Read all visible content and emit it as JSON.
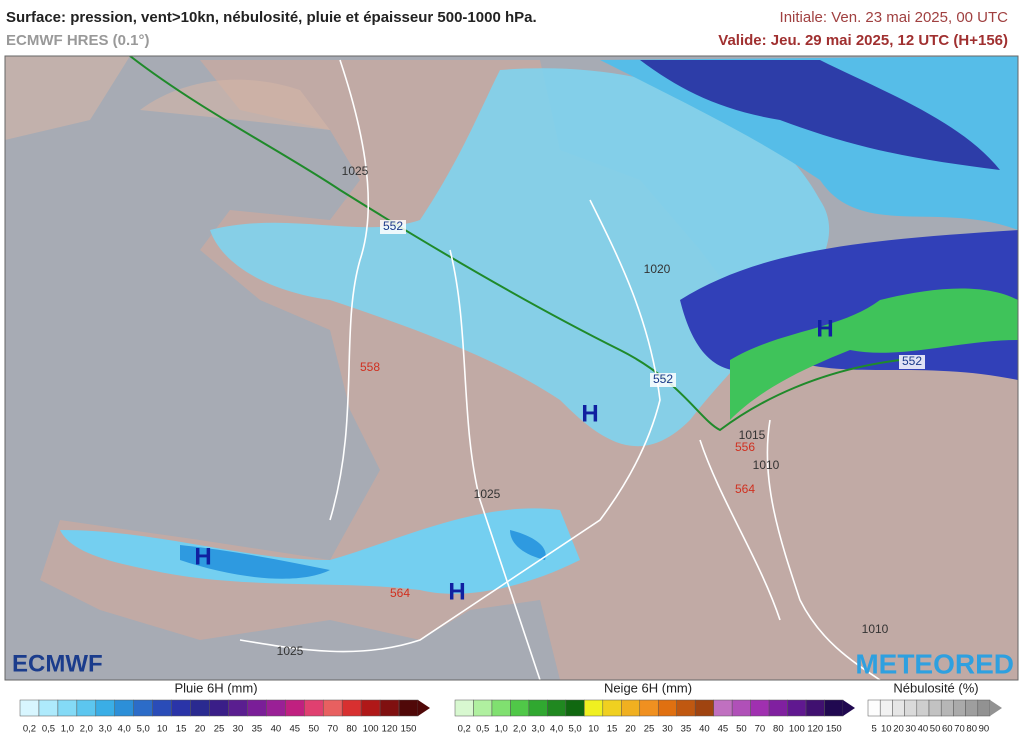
{
  "header": {
    "title": "Surface: pression, vent>10kn, nébulosité, pluie et épaisseur 500-1000 hPa.",
    "model": "ECMWF HRES (0.1°)",
    "initial": "Initiale: Ven. 23 mai 2025, 00 UTC",
    "valid": "Valide: Jeu. 29 mai 2025, 12 UTC (H+156)"
  },
  "map": {
    "labels": [
      "1025",
      "552",
      "1020",
      "558",
      "552",
      "H",
      "1025",
      "H",
      "564",
      "H",
      "1025",
      "1010",
      "1015",
      "556",
      "564",
      "H",
      "552",
      "1010"
    ]
  },
  "logos": {
    "left": "ECMWF",
    "right": "METEORED"
  },
  "legends": {
    "rain": {
      "title": "Pluie 6H (mm)",
      "labels": [
        "0,2",
        "0,5",
        "1,0",
        "2,0",
        "3,0",
        "4,0",
        "5,0",
        "10",
        "15",
        "20",
        "25",
        "30",
        "35",
        "40",
        "45",
        "50",
        "70",
        "80",
        "100",
        "120",
        "150"
      ]
    },
    "snow": {
      "title": "Neige 6H (mm)",
      "labels": [
        "0,2",
        "0,5",
        "1,0",
        "2,0",
        "3,0",
        "4,0",
        "5,0",
        "10",
        "15",
        "20",
        "25",
        "30",
        "35",
        "40",
        "45",
        "50",
        "70",
        "80",
        "100",
        "120",
        "150"
      ]
    },
    "cloud": {
      "title": "Nébulosité (%)",
      "labels": [
        "5",
        "10",
        "20",
        "30",
        "40",
        "50",
        "60",
        "70",
        "80",
        "90"
      ]
    }
  }
}
